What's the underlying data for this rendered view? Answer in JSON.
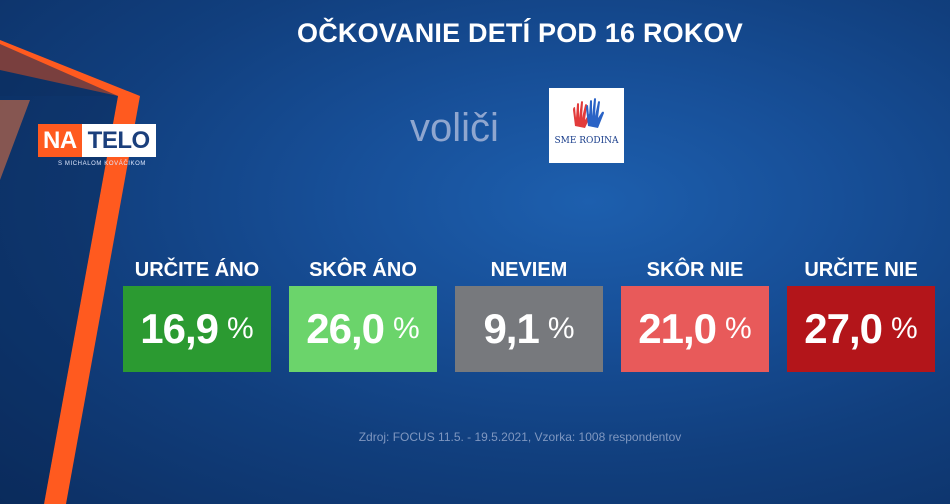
{
  "title": "OČKOVANIE DETÍ POD 16 ROKOV",
  "subtitle": "voliči",
  "show_logo": {
    "na": "NA",
    "telo": "TELO",
    "sub": "S MICHALOM KOVÁČIKOM"
  },
  "party_logo_text": "SME RODINA",
  "unit": "%",
  "source": "Zdroj: FOCUS 11.5. - 19.5.2021, Vzorka: 1008 respondentov",
  "colors": {
    "urcite_ano": "#2b9a31",
    "skor_ano": "#6bd46b",
    "neviem": "#77797d",
    "skor_nie": "#e85a5a",
    "urcite_nie": "#b3151a",
    "accent_orange": "#ff5a1f"
  },
  "chart_data": {
    "type": "bar",
    "title": "OČKOVANIE DETÍ POD 16 ROKOV",
    "categories": [
      "URČITE ÁNO",
      "SKÔR ÁNO",
      "NEVIEM",
      "SKÔR NIE",
      "URČITE NIE"
    ],
    "values": [
      16.9,
      26.0,
      9.1,
      21.0,
      27.0
    ],
    "value_labels": [
      "16,9",
      "26,0",
      "9,1",
      "21,0",
      "27,0"
    ],
    "unit": "%"
  }
}
